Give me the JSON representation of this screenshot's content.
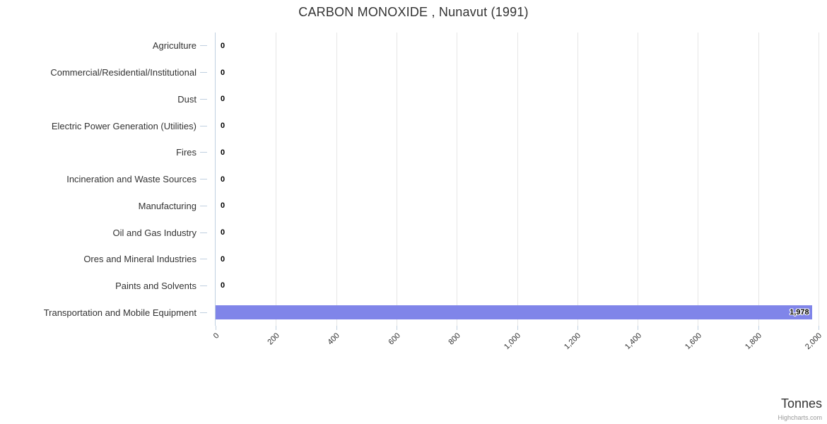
{
  "chart_data": {
    "type": "bar",
    "orientation": "horizontal",
    "title": "CARBON MONOXIDE , Nunavut (1991)",
    "categories": [
      "Agriculture",
      "Commercial/Residential/Institutional",
      "Dust",
      "Electric Power Generation (Utilities)",
      "Fires",
      "Incineration and Waste Sources",
      "Manufacturing",
      "Oil and Gas Industry",
      "Ores and Mineral Industries",
      "Paints and Solvents",
      "Transportation and Mobile Equipment"
    ],
    "values": [
      0,
      0,
      0,
      0,
      0,
      0,
      0,
      0,
      0,
      0,
      1978
    ],
    "value_labels": [
      "0",
      "0",
      "0",
      "0",
      "0",
      "0",
      "0",
      "0",
      "0",
      "0",
      "1,978"
    ],
    "xlabel": "Tonnes",
    "ylabel": "",
    "xlim": [
      0,
      2000
    ],
    "x_ticks": [
      "0",
      "200",
      "400",
      "600",
      "800",
      "1,000",
      "1,200",
      "1,400",
      "1,600",
      "1,800",
      "2,000"
    ],
    "grid": true,
    "legend": false
  },
  "credits": "Highcharts.com",
  "colors": {
    "bar": "#8085e9",
    "gridline": "#e6e6e6",
    "axis_line": "#c0d0e0",
    "text": "#333333",
    "data_label": "#000000",
    "credits": "#999999"
  }
}
